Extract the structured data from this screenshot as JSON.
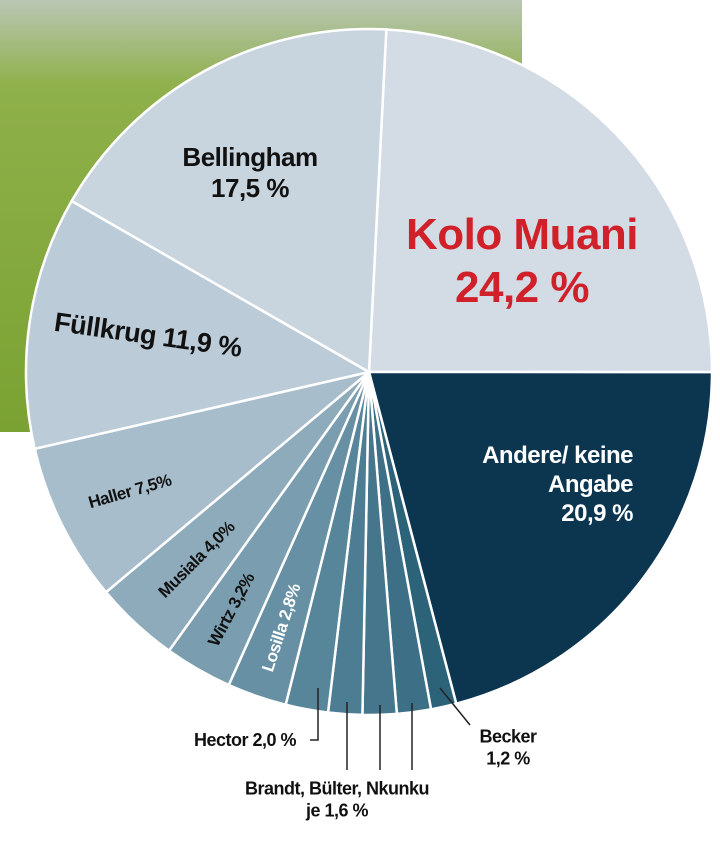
{
  "chart_data": {
    "type": "pie",
    "categories": [
      "Kolo Muani",
      "Andere/ keine Angabe",
      "Becker",
      null,
      null,
      null,
      "Hector",
      "Losilla",
      "Wirtz",
      "Musiala",
      "Haller",
      "Füllkrug",
      "Bellingham"
    ],
    "values": [
      24.2,
      20.9,
      1.2,
      1.6,
      1.6,
      1.6,
      2.0,
      2.8,
      3.2,
      4.0,
      7.5,
      11.9,
      17.5
    ],
    "value_labels": [
      "24,2 %",
      "20,9 %",
      "1,2 %",
      null,
      null,
      null,
      "2,0 %",
      "2,8%",
      "3,2%",
      "4,0%",
      "7,5%",
      "11,9 %",
      "17,5 %"
    ],
    "colors": [
      "#d3dce5",
      "#0c3550",
      "#2d6379",
      "#3d6f86",
      "#45768c",
      "#4d7d93",
      "#57859a",
      "#6890a4",
      "#7a9daf",
      "#8eabbc",
      "#a8bdcb",
      "#bccbd8",
      "#c8d4de"
    ],
    "annotations": [
      {
        "label": "Brandt, Bülter, Nkunku",
        "value_label": "je 1,6 %"
      }
    ]
  }
}
